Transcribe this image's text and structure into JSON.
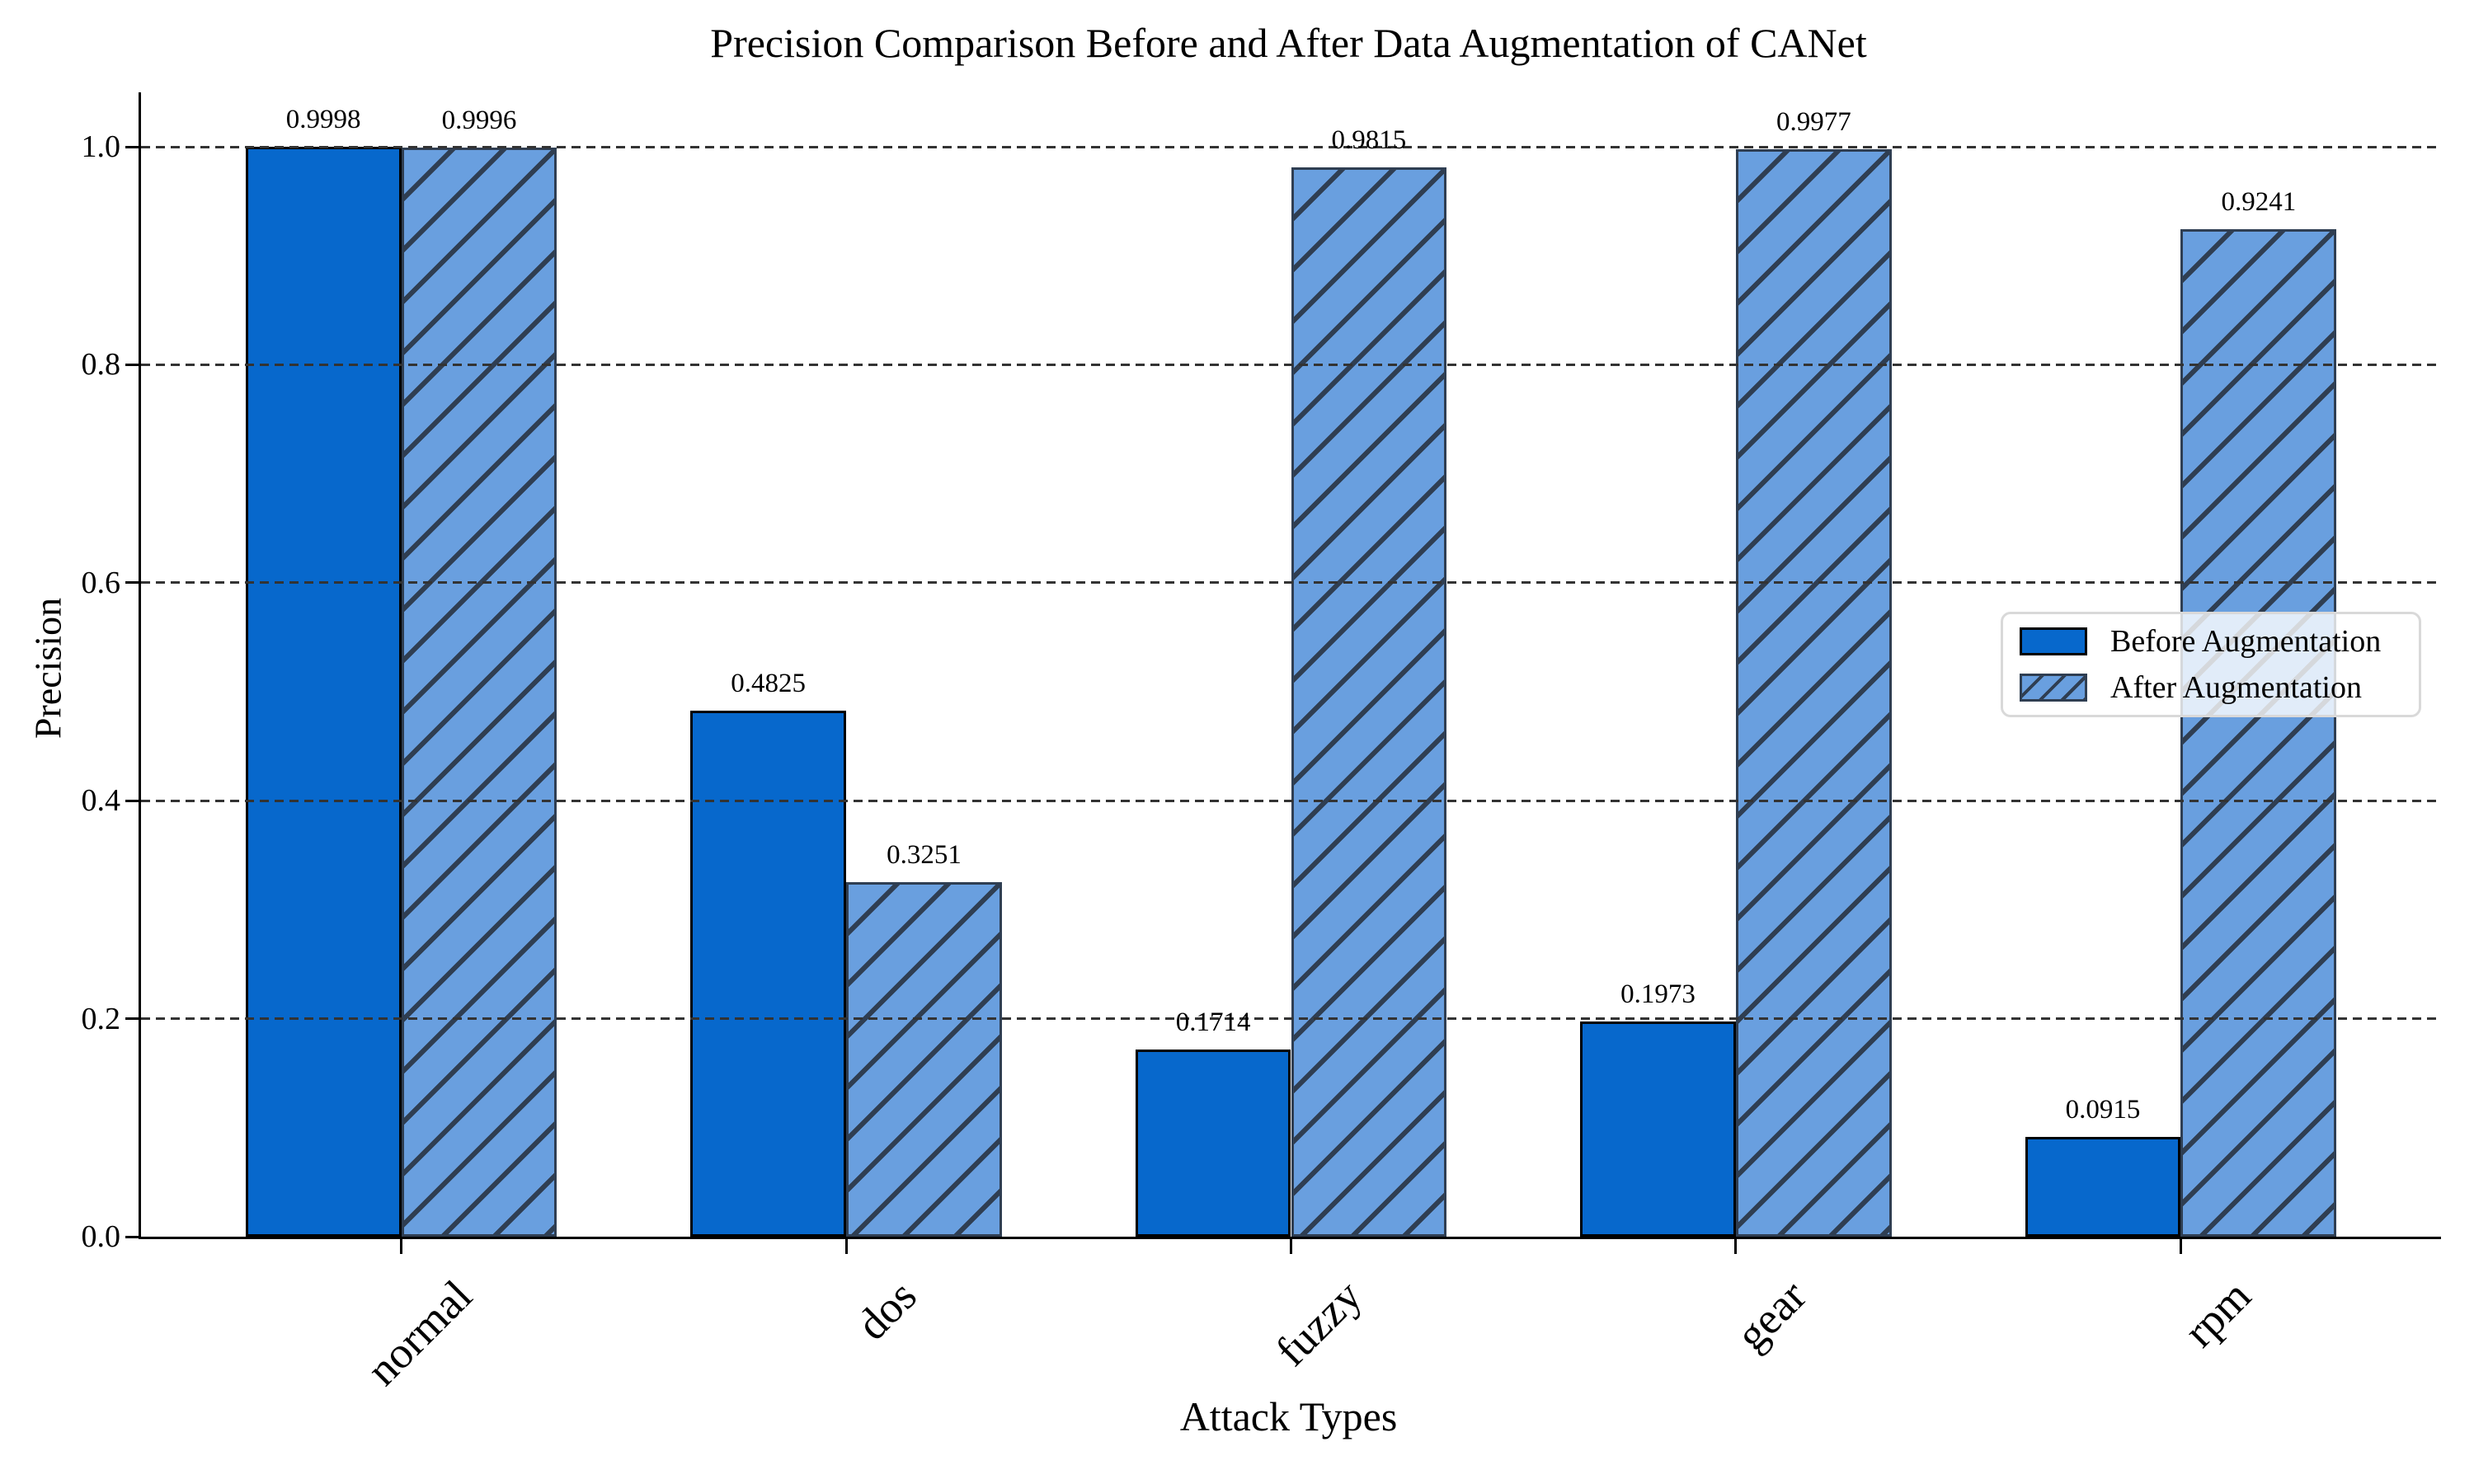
{
  "chart_data": {
    "type": "bar",
    "title": "Precision Comparison Before and After Data Augmentation of CANet",
    "xlabel": "Attack Types",
    "ylabel": "Precision",
    "categories": [
      "normal",
      "dos",
      "fuzzy",
      "gear",
      "rpm"
    ],
    "series": [
      {
        "name": "Before Augmentation",
        "values": [
          0.9998,
          0.4825,
          0.1714,
          0.1973,
          0.0915
        ],
        "value_labels": [
          "0.9998",
          "0.4825",
          "0.1714",
          "0.1973",
          "0.0915"
        ],
        "fill": "#0768cc",
        "edge": "#000000",
        "hatch": "none"
      },
      {
        "name": "After Augmentation",
        "values": [
          0.9996,
          0.3251,
          0.9815,
          0.9977,
          0.9241
        ],
        "value_labels": [
          "0.9996",
          "0.3251",
          "0.9815",
          "0.9977",
          "0.9241"
        ],
        "fill": "#699fdf",
        "edge": "#2f3e52",
        "hatch": "diagonal"
      }
    ],
    "ylim": [
      0.0,
      1.05
    ],
    "yticks": [
      "0.0",
      "0.2",
      "0.4",
      "0.6",
      "0.8",
      "1.0"
    ],
    "grid": "horizontal dashed",
    "grid_color": "#333333",
    "axis_color": "#000000",
    "hatch_color": "#2f3e52",
    "bar_width_fraction": 0.35,
    "legend": {
      "position": "right",
      "border_color": "#d9d9d9",
      "background": "rgba(255,255,255,0.8)"
    }
  }
}
